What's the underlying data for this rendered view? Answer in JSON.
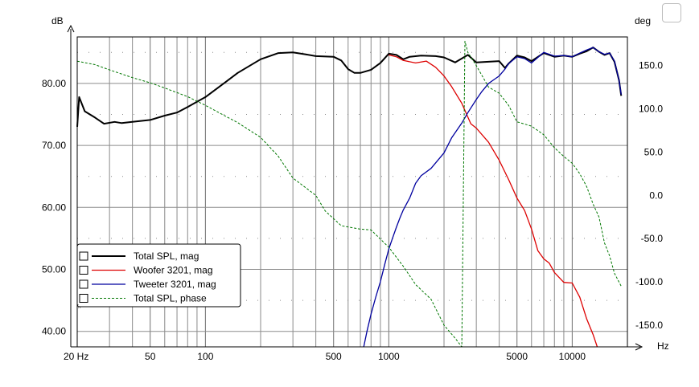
{
  "chart_data": {
    "type": "line",
    "ylabel_left": "dB",
    "ylabel_right": "deg",
    "xlabel": "Hz",
    "x_scale": "log",
    "xlim": [
      20,
      20000
    ],
    "ylim_left": [
      37.5,
      87.5
    ],
    "ylim_right": [
      -175,
      183
    ],
    "grid": true,
    "x_tick_labels": [
      {
        "x": 20,
        "label": "20 Hz"
      },
      {
        "x": 50,
        "label": "50"
      },
      {
        "x": 100,
        "label": "100"
      },
      {
        "x": 500,
        "label": "500"
      },
      {
        "x": 1000,
        "label": "1000"
      },
      {
        "x": 5000,
        "label": "5000"
      },
      {
        "x": 10000,
        "label": "10000"
      }
    ],
    "y_left_ticks": [
      {
        "y": 40,
        "label": "40.00"
      },
      {
        "y": 50,
        "label": "50.00"
      },
      {
        "y": 60,
        "label": "60.00"
      },
      {
        "y": 70,
        "label": "70.00"
      },
      {
        "y": 80,
        "label": "80.00"
      }
    ],
    "y_right_ticks": [
      {
        "y": -150,
        "label": "-150.0"
      },
      {
        "y": -100,
        "label": "-100.0"
      },
      {
        "y": -50,
        "label": "-50.0"
      },
      {
        "y": 0,
        "label": "0.0"
      },
      {
        "y": 50,
        "label": "50.0"
      },
      {
        "y": 100,
        "label": "100.0"
      },
      {
        "y": 150,
        "label": "150.0"
      }
    ],
    "legend_position": "bottom-left",
    "series": [
      {
        "name": "Total SPL, mag",
        "color": "#000000",
        "axis": "left",
        "style": "solid",
        "points": [
          [
            20,
            73
          ],
          [
            20.5,
            77.8
          ],
          [
            22,
            75.5
          ],
          [
            25,
            74.5
          ],
          [
            28,
            73.5
          ],
          [
            32,
            73.8
          ],
          [
            35,
            73.6
          ],
          [
            40,
            73.8
          ],
          [
            50,
            74.1
          ],
          [
            60,
            74.8
          ],
          [
            70,
            75.3
          ],
          [
            80,
            76.2
          ],
          [
            100,
            77.8
          ],
          [
            130,
            80.3
          ],
          [
            150,
            81.7
          ],
          [
            200,
            83.9
          ],
          [
            250,
            84.9
          ],
          [
            300,
            85.0
          ],
          [
            350,
            84.7
          ],
          [
            400,
            84.4
          ],
          [
            500,
            84.3
          ],
          [
            550,
            83.7
          ],
          [
            600,
            82.3
          ],
          [
            650,
            81.7
          ],
          [
            700,
            81.7
          ],
          [
            800,
            82.2
          ],
          [
            900,
            83.3
          ],
          [
            1000,
            84.8
          ],
          [
            1100,
            84.6
          ],
          [
            1200,
            83.9
          ],
          [
            1300,
            84.3
          ],
          [
            1500,
            84.5
          ],
          [
            1800,
            84.4
          ],
          [
            2000,
            84.2
          ],
          [
            2300,
            83.4
          ],
          [
            2700,
            84.6
          ],
          [
            3000,
            83.4
          ],
          [
            3500,
            83.5
          ],
          [
            4000,
            83.6
          ],
          [
            4300,
            82.5
          ],
          [
            4500,
            83.2
          ],
          [
            5000,
            84.5
          ],
          [
            5500,
            84.2
          ],
          [
            6000,
            83.6
          ],
          [
            7000,
            84.9
          ],
          [
            8000,
            84.3
          ],
          [
            9000,
            84.5
          ],
          [
            10000,
            84.3
          ],
          [
            11000,
            84.8
          ],
          [
            12000,
            85.2
          ],
          [
            13000,
            85.8
          ],
          [
            14000,
            85.1
          ],
          [
            15000,
            84.6
          ],
          [
            16000,
            84.9
          ],
          [
            17000,
            83.5
          ],
          [
            18000,
            80.5
          ],
          [
            18500,
            78.0
          ]
        ]
      },
      {
        "name": "Woofer 3201, mag",
        "color": "#dd0000",
        "axis": "left",
        "style": "solid",
        "points": [
          [
            1000,
            84.6
          ],
          [
            1100,
            84.3
          ],
          [
            1200,
            83.7
          ],
          [
            1400,
            83.3
          ],
          [
            1600,
            83.6
          ],
          [
            1800,
            82.6
          ],
          [
            2000,
            81.2
          ],
          [
            2200,
            79.5
          ],
          [
            2500,
            76.8
          ],
          [
            2800,
            73.5
          ],
          [
            3000,
            72.8
          ],
          [
            3500,
            70.5
          ],
          [
            4000,
            67.6
          ],
          [
            4500,
            64.5
          ],
          [
            5000,
            61.5
          ],
          [
            5500,
            59.5
          ],
          [
            6000,
            56.5
          ],
          [
            6500,
            53.0
          ],
          [
            7000,
            51.7
          ],
          [
            7500,
            51.0
          ],
          [
            8000,
            49.5
          ],
          [
            9000,
            47.9
          ],
          [
            10000,
            47.8
          ],
          [
            11000,
            45.5
          ],
          [
            12000,
            42.0
          ],
          [
            13000,
            39.5
          ],
          [
            13700,
            37.5
          ]
        ]
      },
      {
        "name": "Tweeter 3201, mag",
        "color": "#00009f",
        "axis": "left",
        "style": "solid",
        "points": [
          [
            730,
            37.5
          ],
          [
            760,
            40.0
          ],
          [
            800,
            42.8
          ],
          [
            850,
            45.6
          ],
          [
            900,
            48.0
          ],
          [
            950,
            50.8
          ],
          [
            1000,
            53.3
          ],
          [
            1050,
            55.1
          ],
          [
            1100,
            56.8
          ],
          [
            1150,
            58.3
          ],
          [
            1200,
            59.6
          ],
          [
            1300,
            61.5
          ],
          [
            1400,
            63.9
          ],
          [
            1500,
            65.1
          ],
          [
            1700,
            66.3
          ],
          [
            2000,
            68.8
          ],
          [
            2200,
            71.2
          ],
          [
            2500,
            73.6
          ],
          [
            2700,
            75.3
          ],
          [
            3000,
            77.4
          ],
          [
            3200,
            78.6
          ],
          [
            3500,
            80.0
          ],
          [
            4000,
            81.2
          ],
          [
            4300,
            82.3
          ],
          [
            4500,
            83.2
          ],
          [
            5000,
            84.3
          ],
          [
            5500,
            84.0
          ],
          [
            6000,
            83.3
          ],
          [
            7000,
            85.0
          ],
          [
            8000,
            84.4
          ],
          [
            9000,
            84.5
          ],
          [
            10000,
            84.3
          ],
          [
            11000,
            84.9
          ],
          [
            12000,
            85.4
          ],
          [
            13000,
            85.8
          ],
          [
            14000,
            85.1
          ],
          [
            15000,
            84.7
          ],
          [
            16000,
            84.9
          ],
          [
            17000,
            83.6
          ],
          [
            18000,
            80.5
          ],
          [
            18500,
            78.2
          ]
        ]
      },
      {
        "name": "Total SPL, phase",
        "color": "#007700",
        "axis": "right",
        "style": "dashed",
        "points": [
          [
            20,
            155
          ],
          [
            25,
            151
          ],
          [
            30,
            145
          ],
          [
            40,
            136
          ],
          [
            50,
            130
          ],
          [
            60,
            124
          ],
          [
            80,
            114
          ],
          [
            100,
            104
          ],
          [
            130,
            91
          ],
          [
            150,
            84
          ],
          [
            200,
            67
          ],
          [
            250,
            45
          ],
          [
            300,
            20
          ],
          [
            400,
            0
          ],
          [
            450,
            -18
          ],
          [
            550,
            -35
          ],
          [
            700,
            -39
          ],
          [
            800,
            -40
          ],
          [
            1000,
            -60
          ],
          [
            1200,
            -82
          ],
          [
            1400,
            -103
          ],
          [
            1700,
            -120
          ],
          [
            2000,
            -150
          ],
          [
            2300,
            -165
          ],
          [
            2500,
            -175
          ],
          [
            2600,
            178
          ],
          [
            2700,
            165
          ],
          [
            3000,
            150
          ],
          [
            3500,
            125
          ],
          [
            4000,
            118
          ],
          [
            4500,
            104
          ],
          [
            5000,
            85
          ],
          [
            6000,
            80
          ],
          [
            7000,
            70
          ],
          [
            8000,
            55
          ],
          [
            9000,
            45
          ],
          [
            10000,
            37
          ],
          [
            11000,
            25
          ],
          [
            12000,
            10
          ],
          [
            13000,
            -10
          ],
          [
            14000,
            -25
          ],
          [
            15000,
            -55
          ],
          [
            16000,
            -70
          ],
          [
            17000,
            -90
          ],
          [
            18500,
            -105
          ]
        ]
      }
    ]
  }
}
